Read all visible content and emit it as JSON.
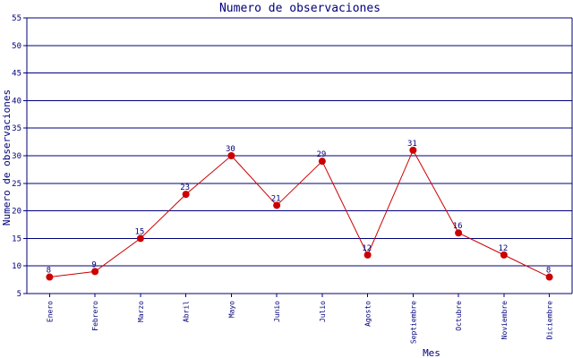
{
  "chart_data": {
    "type": "line",
    "title": "Numero de observaciones",
    "xlabel": "Mes",
    "ylabel": "Numero de observaciones",
    "categories": [
      "Enero",
      "Febrero",
      "Marzo",
      "Abril",
      "Mayo",
      "Junio",
      "Julio",
      "Agosto",
      "Septiembre",
      "Octubre",
      "Noviembre",
      "Diciembre"
    ],
    "values": [
      8,
      9,
      15,
      23,
      30,
      21,
      29,
      12,
      31,
      16,
      12,
      8
    ],
    "ylim": [
      5,
      55
    ],
    "yticks": [
      5,
      10,
      15,
      20,
      25,
      30,
      35,
      40,
      45,
      50,
      55
    ],
    "grid": "horizontal",
    "legend": "none",
    "colors": {
      "line": "#cc0000",
      "marker": "#cc0000",
      "grid": "#00007a",
      "axis": "#00007a",
      "text": "#00007a"
    }
  }
}
